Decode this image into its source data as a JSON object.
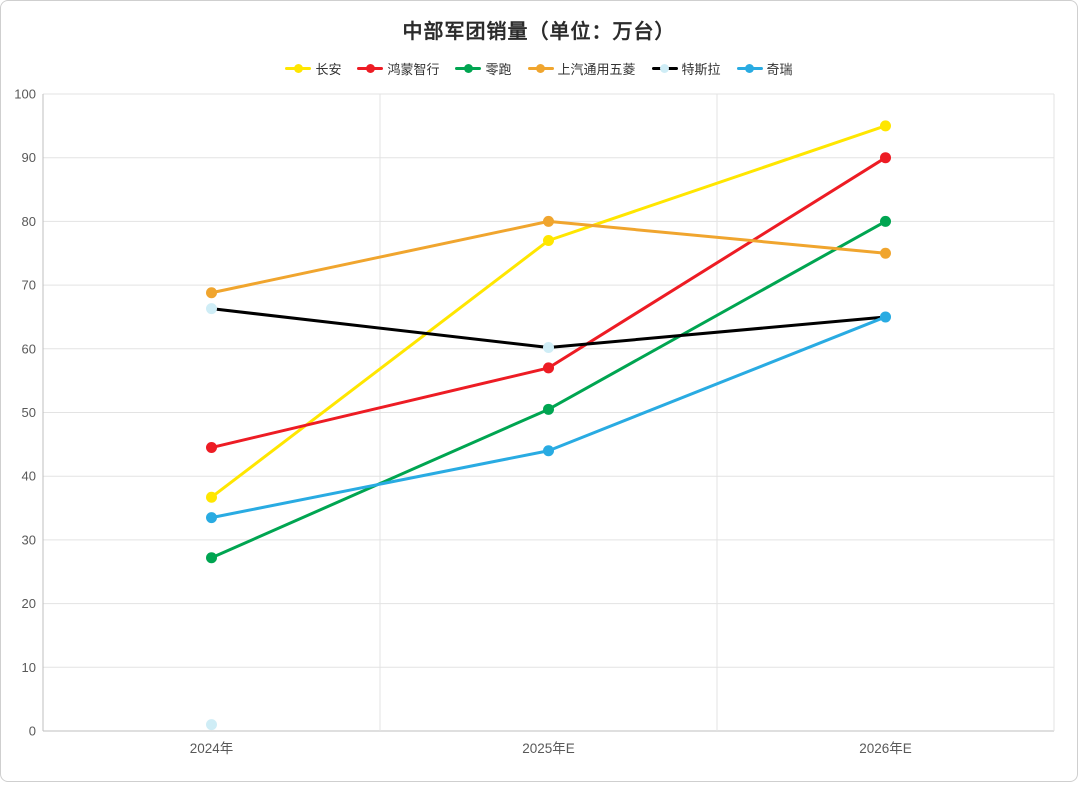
{
  "chart_data": {
    "type": "line",
    "title": "中部军团销量（单位：万台）",
    "categories": [
      "2024年",
      "2025年E",
      "2026年E"
    ],
    "series": [
      {
        "name": "长安",
        "color": "#FFE600",
        "marker_color": "#FFE600",
        "values": [
          36.7,
          77,
          95
        ]
      },
      {
        "name": "鸿蒙智行",
        "color": "#ED1C24",
        "marker_color": "#ED1C24",
        "values": [
          44.5,
          57,
          90
        ]
      },
      {
        "name": "零跑",
        "color": "#00A551",
        "marker_color": "#00A551",
        "values": [
          27.2,
          50.5,
          80
        ]
      },
      {
        "name": "上汽通用五菱",
        "color": "#F0A52E",
        "marker_color": "#F0A52E",
        "values": [
          68.8,
          80,
          75
        ]
      },
      {
        "name": "特斯拉",
        "color": "#000000",
        "marker_color": "#CFEDF6",
        "values": [
          66.3,
          60.2,
          65
        ]
      },
      {
        "name": "奇瑞",
        "color": "#29ABE2",
        "marker_color": "#29ABE2",
        "values": [
          33.5,
          44,
          65
        ]
      }
    ],
    "stray_points": [
      {
        "category": "2024年",
        "value": 1,
        "color": "#CFEDF6"
      }
    ],
    "ylim": [
      0,
      100
    ],
    "y_ticks": [
      0,
      10,
      20,
      30,
      40,
      50,
      60,
      70,
      80,
      90,
      100
    ],
    "grid": true,
    "legend_position": "top",
    "colors": {
      "gridline": "#E3E3E3",
      "axis": "#BFBFBF",
      "tick_label": "#595959"
    }
  }
}
